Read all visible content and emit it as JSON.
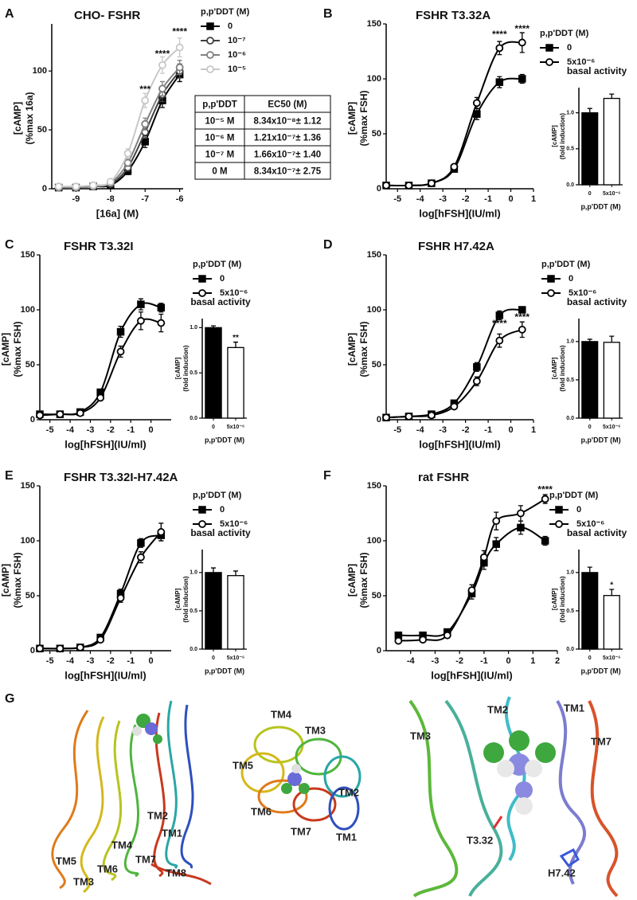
{
  "chart_data": [
    {
      "type": "line",
      "panel": "A",
      "title": "CHO- FSHR",
      "x_label": "[16a] (M)",
      "y_label": [
        "[cAMP]",
        "(%max 16a)"
      ],
      "xlim": [
        -9.7,
        -5.9
      ],
      "xticks": [
        -9,
        -8,
        -7,
        -6
      ],
      "ylim": [
        0,
        140
      ],
      "yticks": [
        0,
        50,
        100
      ],
      "x": [
        -9.5,
        -9,
        -8.5,
        -8,
        -7.5,
        -7,
        -6.5,
        -6
      ],
      "legend_title": "p,p'DDT (M)",
      "series": [
        {
          "name": "0",
          "color": "#000000",
          "marker": "square",
          "fill": "#000000",
          "values": [
            1,
            1,
            2,
            3,
            15,
            40,
            75,
            97
          ],
          "errors": [
            1,
            1,
            1,
            1,
            3,
            5,
            6,
            6
          ]
        },
        {
          "name": "10⁻⁷",
          "color": "#404040",
          "marker": "circle",
          "fill": "#ffffff",
          "values": [
            1,
            1,
            2,
            4,
            18,
            48,
            80,
            100
          ],
          "errors": [
            1,
            1,
            1,
            1,
            3,
            5,
            6,
            6
          ]
        },
        {
          "name": "10⁻⁶",
          "color": "#808080",
          "marker": "circle",
          "fill": "#ffffff",
          "values": [
            1,
            1,
            2,
            5,
            22,
            55,
            85,
            103
          ],
          "errors": [
            1,
            1,
            1,
            1,
            3,
            5,
            6,
            6
          ]
        },
        {
          "name": "10⁻⁵",
          "color": "#c8c8c8",
          "marker": "circle",
          "fill": "#ffffff",
          "values": [
            2,
            2,
            3,
            6,
            30,
            75,
            105,
            120
          ],
          "errors": [
            1,
            1,
            1,
            1,
            4,
            6,
            7,
            8
          ]
        }
      ],
      "annotations": [
        {
          "text": "***",
          "x": -7,
          "y": 84
        },
        {
          "text": "****",
          "x": -6.5,
          "y": 114
        },
        {
          "text": "****",
          "x": -6,
          "y": 133
        }
      ],
      "table": {
        "header": [
          "p,p'DDT",
          "EC50 (M)"
        ],
        "rows": [
          [
            "10⁻⁵ M",
            "8.34x10⁻⁸± 1.12"
          ],
          [
            "10⁻⁶ M",
            "1.21x10⁻⁷± 1.36"
          ],
          [
            "10⁻⁷ M",
            "1.66x10⁻⁷± 1.40"
          ],
          [
            "0 M",
            "8.34x10⁻⁷± 2.75"
          ]
        ]
      }
    },
    {
      "type": "line",
      "panel": "B",
      "title": "FSHR T3.32A",
      "x_label": "log[hFSH](IU/ml)",
      "y_label": [
        "[cAMP]",
        "(%max FSH)"
      ],
      "xlim": [
        -5.5,
        1
      ],
      "xticks": [
        -5,
        -4,
        -3,
        -2,
        -1,
        0,
        1
      ],
      "ylim": [
        0,
        150
      ],
      "yticks": [
        0,
        50,
        100,
        150
      ],
      "x": [
        -5.5,
        -4.5,
        -3.5,
        -2.5,
        -1.5,
        -0.5,
        0.5
      ],
      "legend_title": "p,p'DDT (M)",
      "series": [
        {
          "name": "0",
          "color": "#000000",
          "marker": "square",
          "fill": "#000000",
          "values": [
            3,
            3,
            5,
            18,
            68,
            97,
            100
          ],
          "errors": [
            1,
            1,
            1,
            2,
            5,
            5,
            4
          ]
        },
        {
          "name": "5x10⁻⁶",
          "color": "#000000",
          "marker": "circle",
          "fill": "#ffffff",
          "values": [
            3,
            3,
            5,
            20,
            78,
            128,
            133
          ],
          "errors": [
            1,
            1,
            1,
            2,
            5,
            6,
            9
          ]
        }
      ],
      "annotations": [
        {
          "text": "****",
          "x": -0.5,
          "y": 140
        },
        {
          "text": "****",
          "x": 0.5,
          "y": 145
        }
      ]
    },
    {
      "type": "bar",
      "title": "basal activity",
      "x_label": "p,p'DDT (M)",
      "y_label": [
        "[cAMP]",
        "(fold induction)"
      ],
      "categories": [
        "0",
        "5x10⁻⁶"
      ],
      "values": [
        1.0,
        1.2
      ],
      "errors": [
        0.06,
        0.06
      ],
      "colors": [
        "#000000",
        "#ffffff"
      ],
      "ylim": [
        0,
        1.35
      ],
      "yticks": [
        {
          "value": 0,
          "label": "0.0"
        },
        {
          "value": 0.5,
          "label": "0.5"
        },
        {
          "value": 1,
          "label": "1.0"
        }
      ]
    },
    {
      "type": "line",
      "panel": "C",
      "title": "FSHR T3.32I",
      "x_label": "log[hFSH](IU/ml)",
      "y_label": [
        "[cAMP]",
        "(%max FSH)"
      ],
      "xlim": [
        -5.5,
        1
      ],
      "xticks": [
        -5,
        -4,
        -3,
        -2,
        -1,
        0
      ],
      "ylim": [
        0,
        150
      ],
      "yticks": [
        0,
        50,
        100,
        150
      ],
      "x": [
        -5.5,
        -4.5,
        -3.5,
        -2.5,
        -1.5,
        -0.5,
        0.5
      ],
      "legend_title": "p,p'DDT (M)",
      "series": [
        {
          "name": "0",
          "color": "#000000",
          "marker": "square",
          "fill": "#000000",
          "values": [
            5,
            5,
            7,
            25,
            80,
            105,
            102
          ],
          "errors": [
            1,
            1,
            1,
            2,
            5,
            5,
            4
          ]
        },
        {
          "name": "5x10⁻⁶",
          "color": "#000000",
          "marker": "circle",
          "fill": "#ffffff",
          "values": [
            4,
            5,
            6,
            20,
            62,
            90,
            88
          ],
          "errors": [
            1,
            1,
            1,
            2,
            5,
            8,
            8
          ]
        }
      ]
    },
    {
      "type": "bar",
      "title": "basal activity",
      "x_label": "p,p'DDT (M)",
      "y_label": [
        "[cAMP]",
        "(fold induction)"
      ],
      "categories": [
        "0",
        "5x10⁻⁶"
      ],
      "values": [
        1.0,
        0.78
      ],
      "errors": [
        0.02,
        0.06
      ],
      "colors": [
        "#000000",
        "#ffffff"
      ],
      "ylim": [
        0,
        1.1
      ],
      "yticks": [
        {
          "value": 0,
          "label": "0.0"
        },
        {
          "value": 0.5,
          "label": "0.5"
        },
        {
          "value": 1,
          "label": "1.0"
        }
      ],
      "annotations": [
        {
          "text": "**",
          "category": "5x10⁻⁶"
        }
      ]
    },
    {
      "type": "line",
      "panel": "D",
      "title": "FSHR H7.42A",
      "x_label": "log[hFSH](IU/ml)",
      "y_label": [
        "[cAMP]",
        "(%max FSH)"
      ],
      "xlim": [
        -5.5,
        1
      ],
      "xticks": [
        -5,
        -4,
        -3,
        -2,
        -1,
        0,
        1
      ],
      "ylim": [
        0,
        150
      ],
      "yticks": [
        0,
        50,
        100,
        150
      ],
      "x": [
        -5.5,
        -4.5,
        -3.5,
        -2.5,
        -1.5,
        -0.5,
        0.5
      ],
      "legend_title": "p,p'DDT (M)",
      "series": [
        {
          "name": "0",
          "color": "#000000",
          "marker": "square",
          "fill": "#000000",
          "values": [
            2,
            3,
            5,
            15,
            48,
            95,
            100
          ],
          "errors": [
            1,
            1,
            1,
            2,
            4,
            4,
            2
          ]
        },
        {
          "name": "5x10⁻⁶",
          "color": "#000000",
          "marker": "circle",
          "fill": "#ffffff",
          "values": [
            2,
            3,
            4,
            12,
            35,
            72,
            82
          ],
          "errors": [
            1,
            1,
            1,
            2,
            4,
            6,
            7
          ]
        }
      ],
      "annotations": [
        {
          "text": "****",
          "x": -0.5,
          "y": 87
        },
        {
          "text": "****",
          "x": 0.5,
          "y": 93
        }
      ]
    },
    {
      "type": "bar",
      "title": "basal activity",
      "x_label": "p,p'DDT (M)",
      "y_label": [
        "[cAMP]",
        "(fold induction)"
      ],
      "categories": [
        "0",
        "5x10⁻⁶"
      ],
      "values": [
        1.0,
        0.99
      ],
      "errors": [
        0.03,
        0.08
      ],
      "colors": [
        "#000000",
        "#ffffff"
      ],
      "ylim": [
        0,
        1.3
      ],
      "yticks": [
        {
          "value": 0,
          "label": "0.0"
        },
        {
          "value": 0.5,
          "label": "0.5"
        },
        {
          "value": 1,
          "label": "1.0"
        }
      ]
    },
    {
      "type": "line",
      "panel": "E",
      "title": "FSHR T3.32I-H7.42A",
      "x_label": "log[hFSH](IU/ml)",
      "y_label": [
        "[cAMP]",
        "(%max FSH)"
      ],
      "xlim": [
        -5.5,
        1
      ],
      "xticks": [
        -5,
        -4,
        -3,
        -2,
        -1,
        0
      ],
      "ylim": [
        0,
        150
      ],
      "yticks": [
        0,
        50,
        100,
        150
      ],
      "x": [
        -5.5,
        -4.5,
        -3.5,
        -2.5,
        -1.5,
        -0.5,
        0.5
      ],
      "legend_title": "p,p'DDT (M)",
      "series": [
        {
          "name": "0",
          "color": "#000000",
          "marker": "square",
          "fill": "#000000",
          "values": [
            2,
            2,
            3,
            12,
            52,
            98,
            105
          ],
          "errors": [
            1,
            1,
            1,
            2,
            4,
            4,
            5
          ]
        },
        {
          "name": "5x10⁻⁶",
          "color": "#000000",
          "marker": "circle",
          "fill": "#ffffff",
          "values": [
            2,
            2,
            3,
            10,
            48,
            85,
            108
          ],
          "errors": [
            1,
            1,
            1,
            2,
            4,
            5,
            8
          ]
        }
      ]
    },
    {
      "type": "bar",
      "title": "basal activity",
      "x_label": "p,p'DDT (M)",
      "y_label": [
        "[cAMP]",
        "(fold induction)"
      ],
      "categories": [
        "0",
        "5x10⁻⁶"
      ],
      "values": [
        1.0,
        0.96
      ],
      "errors": [
        0.06,
        0.06
      ],
      "colors": [
        "#000000",
        "#ffffff"
      ],
      "ylim": [
        0,
        1.3
      ],
      "yticks": [
        {
          "value": 0,
          "label": "0.0"
        },
        {
          "value": 0.5,
          "label": "0.5"
        },
        {
          "value": 1,
          "label": "1.0"
        }
      ]
    },
    {
      "type": "line",
      "panel": "F",
      "title": "rat FSHR",
      "x_label": "log[hFSH](IU/ml)",
      "y_label": [
        "[cAMP]",
        "(%max FSH)"
      ],
      "xlim": [
        -5,
        2
      ],
      "xticks": [
        -4,
        -3,
        -2,
        -1,
        0,
        1,
        2
      ],
      "ylim": [
        0,
        150
      ],
      "yticks": [
        0,
        50,
        100,
        150
      ],
      "x": [
        -4.5,
        -3.5,
        -2.5,
        -1.5,
        -1,
        -0.5,
        0.5,
        1.5
      ],
      "legend_title": "p,p'DDT (M)",
      "series": [
        {
          "name": "0",
          "color": "#000000",
          "marker": "square",
          "fill": "#000000",
          "values": [
            14,
            14,
            17,
            52,
            80,
            97,
            112,
            100
          ],
          "errors": [
            2,
            2,
            2,
            5,
            6,
            6,
            6,
            4
          ]
        },
        {
          "name": "5x10⁻⁶",
          "color": "#000000",
          "marker": "circle",
          "fill": "#ffffff",
          "values": [
            9,
            10,
            14,
            55,
            85,
            118,
            125,
            138
          ],
          "errors": [
            1,
            1,
            2,
            5,
            6,
            8,
            7,
            4
          ]
        }
      ],
      "annotations": [
        {
          "text": "****",
          "x": 1.5,
          "y": 146
        }
      ]
    },
    {
      "type": "bar",
      "title": "basal activity",
      "x_label": "p,p'DDT (M)",
      "y_label": [
        "[cAMP]",
        "(fold induction)"
      ],
      "categories": [
        "0",
        "5x10⁻⁶"
      ],
      "values": [
        1.0,
        0.7
      ],
      "errors": [
        0.07,
        0.08
      ],
      "colors": [
        "#000000",
        "#ffffff"
      ],
      "ylim": [
        0,
        1.3
      ],
      "yticks": [
        {
          "value": 0,
          "label": "0.0"
        },
        {
          "value": 0.5,
          "label": "0.5"
        },
        {
          "value": 1,
          "label": "1.0"
        }
      ],
      "annotations": [
        {
          "text": "*",
          "category": "5x10⁻⁶"
        }
      ]
    }
  ],
  "panel_g": {
    "letter": "G",
    "left_labels": [
      "TM2",
      "TM4",
      "TM1",
      "TM7",
      "TM5",
      "TM6",
      "TM3",
      "TM8"
    ],
    "middle_labels": [
      "TM4",
      "TM3",
      "TM5",
      "TM2",
      "TM6",
      "TM7",
      "TM1"
    ],
    "right_labels": [
      "TM2",
      "TM1",
      "TM7",
      "TM3",
      "T3.32",
      "H7.42"
    ]
  }
}
